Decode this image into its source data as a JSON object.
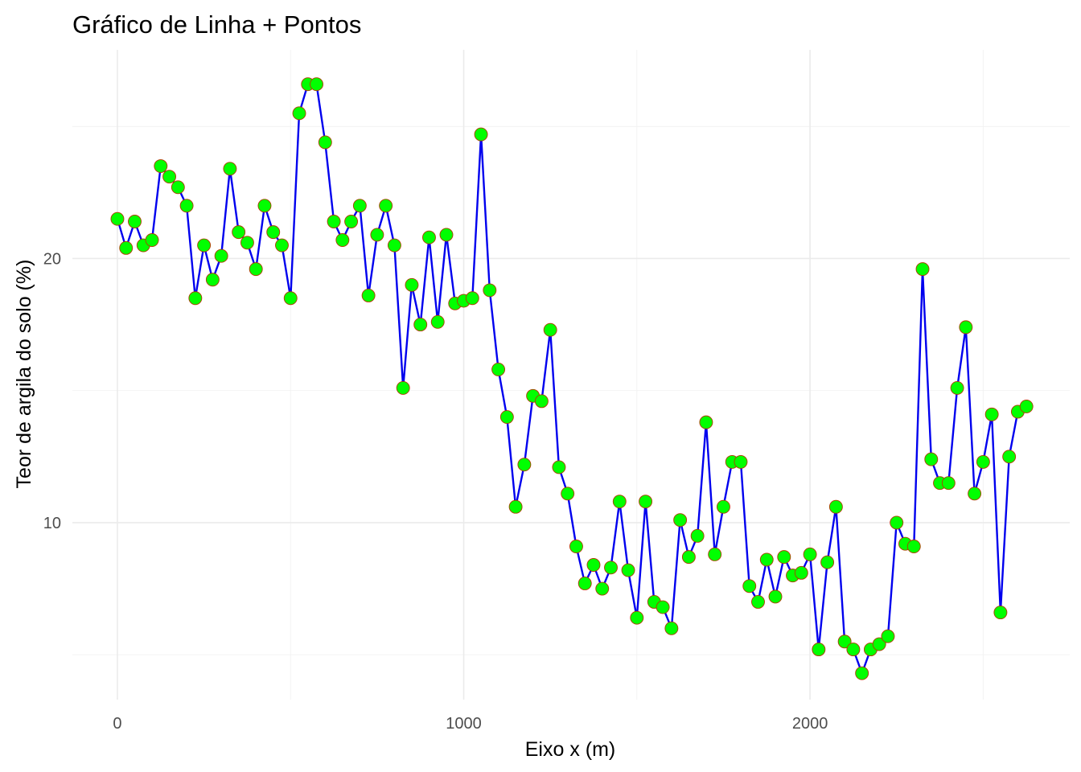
{
  "chart_data": {
    "type": "line",
    "title": "Gráfico de Linha + Pontos",
    "xlabel": "Eixo x (m)",
    "ylabel": "Teor de argila do solo (%)",
    "xlim": [
      -130,
      2750
    ],
    "ylim": [
      3.3,
      27.9
    ],
    "x_ticks": [
      0,
      1000,
      2000
    ],
    "x_tick_labels": [
      "0",
      "1000",
      "2000"
    ],
    "x_minor": [
      500,
      1500,
      2500
    ],
    "y_ticks": [
      10,
      20
    ],
    "y_tick_labels": [
      "10",
      "20"
    ],
    "y_minor": [
      5,
      15,
      25
    ],
    "grid": true,
    "legend": "none",
    "colors": {
      "line": "#0000ee",
      "point_fill": "#00ff00",
      "point_border": "#b03a00"
    },
    "series": [
      {
        "x": [
          0,
          25,
          50,
          75,
          100,
          125,
          150,
          175,
          200,
          225,
          250,
          275,
          300,
          325,
          350,
          375,
          400,
          425,
          450,
          475,
          500,
          525,
          550,
          575,
          600,
          625,
          650,
          675,
          700,
          725,
          750,
          775,
          800,
          825,
          850,
          875,
          900,
          925,
          950,
          975,
          1000,
          1025,
          1050,
          1075,
          1100,
          1125,
          1150,
          1175,
          1200,
          1225,
          1250,
          1275,
          1300,
          1325,
          1350,
          1375,
          1400,
          1425,
          1450,
          1475,
          1500,
          1525,
          1550,
          1575,
          1600,
          1625,
          1650,
          1675,
          1700,
          1725,
          1750,
          1775,
          1800,
          1825,
          1850,
          1875,
          1900,
          1925,
          1950,
          1975,
          2000,
          2025,
          2050,
          2075,
          2100,
          2125,
          2150,
          2175,
          2200,
          2225,
          2250,
          2275,
          2300,
          2325,
          2350,
          2375,
          2400,
          2425,
          2450,
          2475,
          2500,
          2525,
          2550,
          2575,
          2600,
          2625
        ],
        "values": [
          21.5,
          20.4,
          21.4,
          20.5,
          20.7,
          23.5,
          23.1,
          22.7,
          22.0,
          18.5,
          20.5,
          19.2,
          20.1,
          23.4,
          21.0,
          20.6,
          19.6,
          22.0,
          21.0,
          20.5,
          18.5,
          25.5,
          26.6,
          26.6,
          24.4,
          21.4,
          20.7,
          21.4,
          22.0,
          18.6,
          20.9,
          22.0,
          20.5,
          15.1,
          19.0,
          17.5,
          20.8,
          17.6,
          20.9,
          18.3,
          18.4,
          18.5,
          24.7,
          18.8,
          15.8,
          14.0,
          10.6,
          12.2,
          14.8,
          14.6,
          17.3,
          12.1,
          11.1,
          9.1,
          7.7,
          8.4,
          7.5,
          8.3,
          10.8,
          8.2,
          6.4,
          10.8,
          7.0,
          6.8,
          6.0,
          10.1,
          8.7,
          9.5,
          13.8,
          8.8,
          10.6,
          12.3,
          12.3,
          7.6,
          7.0,
          8.6,
          7.2,
          8.7,
          8.0,
          8.1,
          8.8,
          5.2,
          8.5,
          10.6,
          5.5,
          5.2,
          4.3,
          5.2,
          5.4,
          5.7,
          10.0,
          9.2,
          9.1,
          19.6,
          12.4,
          11.5,
          11.5,
          15.1,
          17.4,
          11.1,
          12.3,
          14.1,
          6.6,
          12.5,
          14.2,
          14.4
        ]
      }
    ]
  }
}
